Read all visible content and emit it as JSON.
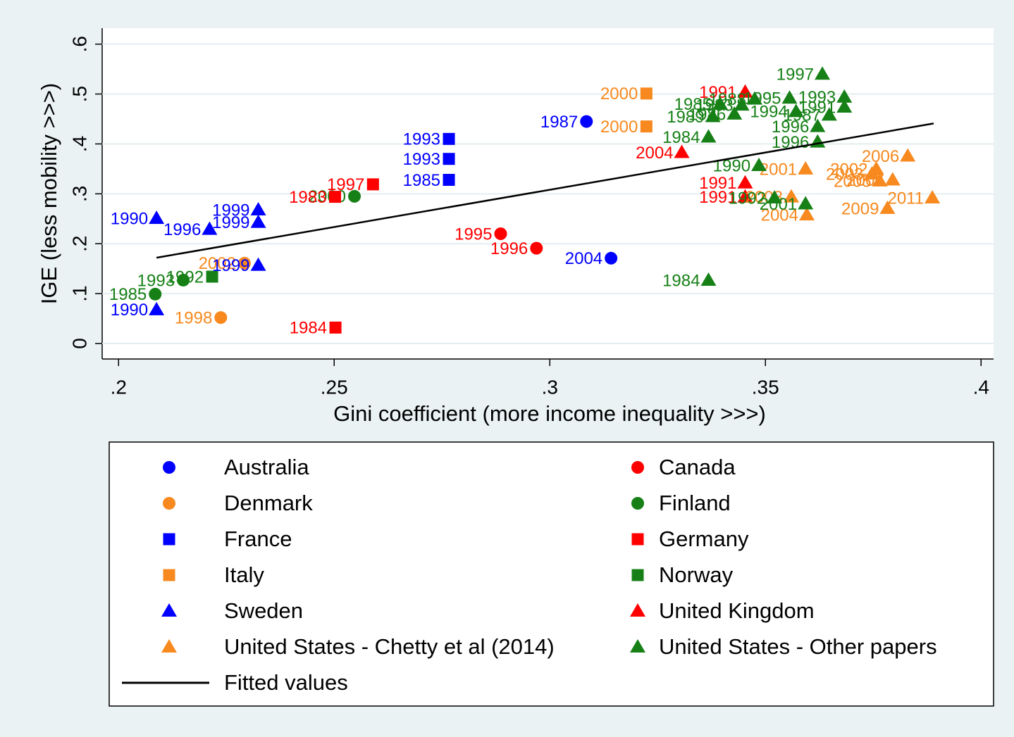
{
  "chart_data": {
    "type": "scatter",
    "x_label": "Gini coefficient (more income inequality >>>)",
    "y_label": "IGE (less mobility >>>)",
    "xlim": [
      0.1962,
      0.4029
    ],
    "ylim": [
      -0.031,
      0.632
    ],
    "xticks": [
      {
        "value": 0.2,
        "label": ".2"
      },
      {
        "value": 0.25,
        "label": ".25"
      },
      {
        "value": 0.3,
        "label": ".3"
      },
      {
        "value": 0.35,
        "label": ".35"
      },
      {
        "value": 0.4,
        "label": ".4"
      }
    ],
    "yticks": [
      0,
      {
        "value": 0.1,
        "label": ".1"
      },
      {
        "value": 0.2,
        "label": ".2"
      },
      {
        "value": 0.3,
        "label": ".3"
      },
      {
        "value": 0.4,
        "label": ".4"
      },
      {
        "value": 0.5,
        "label": ".5"
      },
      {
        "value": 0.6,
        "label": ".6"
      }
    ],
    "grid": true,
    "series": [
      {
        "name": "Australia",
        "color": "#0000ff",
        "marker": "circle",
        "x": [
          0.3085,
          0.3142
        ],
        "values": [
          0.445,
          0.171
        ],
        "labels": [
          "1987",
          "2004"
        ]
      },
      {
        "name": "Canada",
        "color": "#ff0000",
        "marker": "circle",
        "x": [
          0.2886,
          0.2969
        ],
        "values": [
          0.22,
          0.191
        ],
        "labels": [
          "1995",
          "1996"
        ]
      },
      {
        "name": "Denmark",
        "color": "#f7891e",
        "marker": "circle",
        "x": [
          0.2237,
          0.2292
        ],
        "values": [
          0.052,
          0.161
        ],
        "labels": [
          "1998",
          "2002"
        ]
      },
      {
        "name": "Finland",
        "color": "#168016",
        "marker": "circle",
        "x": [
          0.2085,
          0.215,
          0.2547
        ],
        "values": [
          0.099,
          0.127,
          0.295
        ],
        "labels": [
          "1985",
          "1993",
          "2000"
        ]
      },
      {
        "name": "France",
        "color": "#0000ff",
        "marker": "square",
        "x": [
          0.2766,
          0.2766,
          0.2766
        ],
        "values": [
          0.41,
          0.37,
          0.328
        ],
        "labels": [
          "1993",
          "1993",
          "1985"
        ]
      },
      {
        "name": "Germany",
        "color": "#ff0000",
        "marker": "square",
        "x": [
          0.259,
          0.2502,
          0.2503
        ],
        "values": [
          0.319,
          0.294,
          0.032
        ],
        "labels": [
          "1997",
          "1983",
          "1984"
        ]
      },
      {
        "name": "Italy",
        "color": "#f7891e",
        "marker": "square",
        "x": [
          0.3224,
          0.3224
        ],
        "values": [
          0.501,
          0.435
        ],
        "labels": [
          "2000",
          "2000"
        ]
      },
      {
        "name": "Norway",
        "color": "#168016",
        "marker": "square",
        "x": [
          0.2217
        ],
        "values": [
          0.134
        ],
        "labels": [
          "1992"
        ]
      },
      {
        "name": "Sweden",
        "color": "#0000ff",
        "marker": "triangle",
        "x": [
          0.2088,
          0.2211,
          0.2324,
          0.2324,
          0.2324,
          0.2088
        ],
        "values": [
          0.251,
          0.229,
          0.268,
          0.243,
          0.157,
          0.068
        ],
        "labels": [
          "1990",
          "1996",
          "1999",
          "1999",
          "1999",
          "1990"
        ]
      },
      {
        "name": "United Kingdom",
        "color": "#ff0000",
        "marker": "triangle",
        "x": [
          0.3453,
          0.3306,
          0.3453,
          0.3453
        ],
        "values": [
          0.504,
          0.383,
          0.322,
          0.294
        ],
        "labels": [
          "1991",
          "2004",
          "1991",
          "1991"
        ]
      },
      {
        "name": "United States - Chetty et al (2014)",
        "color": "#f7891e",
        "marker": "triangle",
        "x": [
          0.383,
          0.3887,
          0.3783,
          0.3596,
          0.3593,
          0.3757,
          0.3747,
          0.3765,
          0.3795,
          0.356
        ],
        "values": [
          0.376,
          0.292,
          0.271,
          0.258,
          0.35,
          0.35,
          0.34,
          0.326,
          0.328,
          0.294
        ],
        "labels": [
          "2006",
          "2011",
          "2009",
          "2004",
          "2001",
          "2002",
          "2003",
          "2005",
          "2007",
          "2008"
        ]
      },
      {
        "name": "United States - Other papers",
        "color": "#168016",
        "marker": "triangle",
        "x": [
          0.3632,
          0.3368,
          0.3368,
          0.3485,
          0.3621,
          0.3593,
          0.3521,
          0.3621,
          0.3683,
          0.3556,
          0.3395,
          0.3428,
          0.3475,
          0.3571,
          0.3648,
          0.3683,
          0.3378,
          0.3445
        ],
        "values": [
          0.54,
          0.127,
          0.414,
          0.357,
          0.404,
          0.28,
          0.292,
          0.435,
          0.494,
          0.492,
          0.48,
          0.46,
          0.49,
          0.465,
          0.458,
          0.474,
          0.455,
          0.478
        ],
        "labels": [
          "1997",
          "1984",
          "1984",
          "1990",
          "1996",
          "2001",
          "1992",
          "1996",
          "1993",
          "1995",
          "1985",
          "1986",
          "1988",
          "1994",
          "1987",
          "1991",
          "1989",
          "1983"
        ]
      },
      {
        "name": "Fitted values",
        "color": "#000000",
        "marker": "line",
        "x": [
          0.2088,
          0.389
        ],
        "values": [
          0.172,
          0.441
        ]
      }
    ]
  }
}
